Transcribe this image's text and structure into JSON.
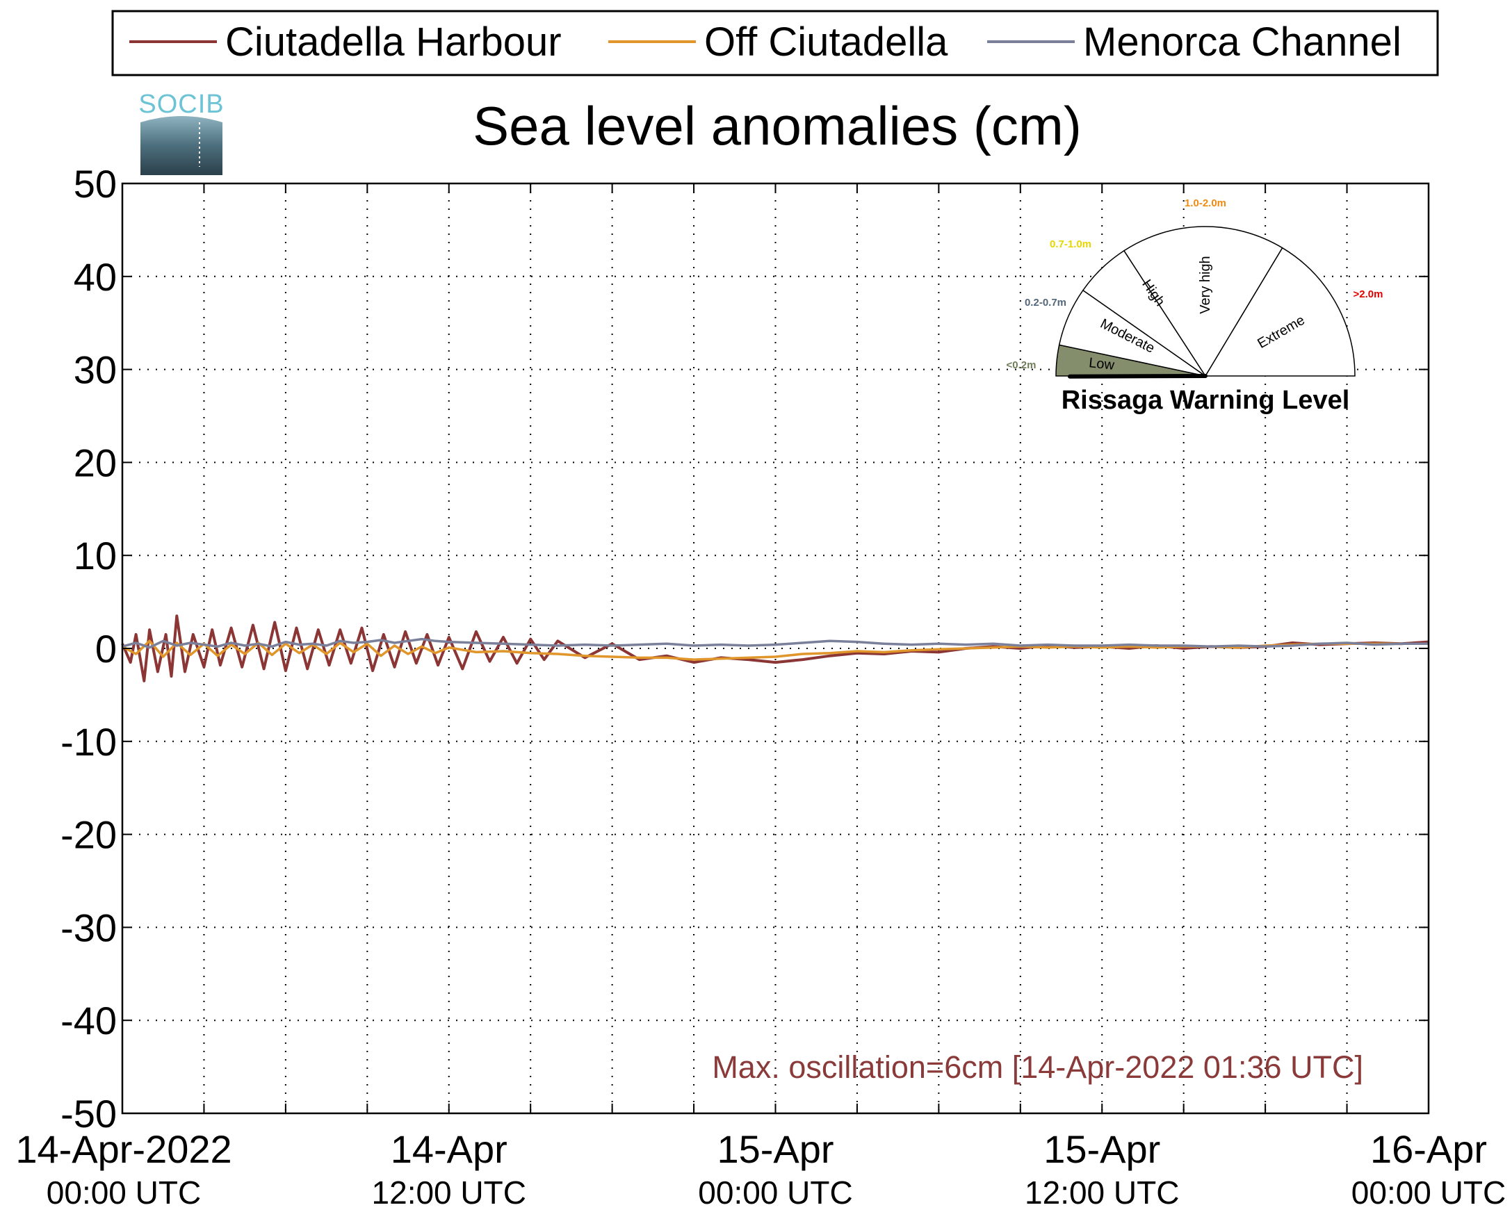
{
  "logo": {
    "text": "SOCIB"
  },
  "legend": {
    "placement": "top"
  },
  "chart_data": {
    "type": "line",
    "title": "Sea level anomalies (cm)",
    "xlabel": "",
    "ylabel": "",
    "ylim": [
      -50,
      50
    ],
    "yticks": [
      50,
      40,
      30,
      20,
      10,
      0,
      -10,
      -20,
      -30,
      -40,
      -50
    ],
    "ytick_labels": [
      "50",
      "40",
      "30",
      "20",
      "10",
      "0",
      "-10",
      "-20",
      "-30",
      "-40",
      "-50"
    ],
    "xlim_hours": [
      0,
      48
    ],
    "x_unit": "hours since 14-Apr-2022 00:00 UTC",
    "xticks": [
      {
        "hour": 0,
        "line1": "14-Apr-2022",
        "line2": "00:00 UTC"
      },
      {
        "hour": 12,
        "line1": "14-Apr",
        "line2": "12:00 UTC"
      },
      {
        "hour": 24,
        "line1": "15-Apr",
        "line2": "00:00 UTC"
      },
      {
        "hour": 36,
        "line1": "15-Apr",
        "line2": "12:00 UTC"
      },
      {
        "hour": 48,
        "line1": "16-Apr",
        "line2": "00:00 UTC"
      }
    ],
    "grid": true,
    "grid_hours": [
      3,
      6,
      9,
      12,
      15,
      18,
      21,
      24,
      27,
      30,
      33,
      36,
      39,
      42,
      45
    ],
    "annotation": "Max. oscillation=6cm [14-Apr-2022 01:36 UTC]",
    "annotation_color": "#8b3a3a",
    "series": [
      {
        "name": "Ciutadella Harbour",
        "color": "#8b3535",
        "x_hours": [
          0,
          0.3,
          0.5,
          0.8,
          1,
          1.3,
          1.6,
          1.8,
          2,
          2.3,
          2.6,
          3,
          3.3,
          3.6,
          4,
          4.4,
          4.8,
          5.2,
          5.6,
          6,
          6.4,
          6.8,
          7.2,
          7.6,
          8,
          8.4,
          8.8,
          9.2,
          9.6,
          10,
          10.4,
          10.8,
          11.2,
          11.6,
          12,
          12.5,
          13,
          13.5,
          14,
          14.5,
          15,
          15.5,
          16,
          17,
          18,
          19,
          20,
          21,
          22,
          23,
          24,
          25,
          26,
          27,
          28,
          29,
          30,
          31,
          32,
          33,
          34,
          35,
          36,
          37,
          38,
          39,
          40,
          41,
          42,
          43,
          44,
          45,
          46,
          47,
          48
        ],
        "values": [
          0.5,
          -1.5,
          1.5,
          -3.5,
          2,
          -2.5,
          1.5,
          -3,
          3.5,
          -2.5,
          1.5,
          -2,
          2,
          -1.8,
          2.2,
          -2,
          2.5,
          -2.2,
          2.8,
          -2.4,
          2.2,
          -2.2,
          2,
          -1.8,
          2,
          -1.6,
          2.2,
          -2.4,
          1.5,
          -2,
          1.8,
          -1.6,
          1.5,
          -1.8,
          1.2,
          -2.2,
          1.8,
          -1.4,
          1.2,
          -1.6,
          1,
          -1.2,
          0.8,
          -1,
          0.5,
          -1.2,
          -0.8,
          -1.5,
          -1,
          -1.2,
          -1.5,
          -1.2,
          -0.8,
          -0.5,
          -0.6,
          -0.3,
          -0.4,
          0,
          0.2,
          0,
          0.3,
          0.1,
          0.2,
          0,
          0.3,
          0,
          0.2,
          0.1,
          0.2,
          0.6,
          0.4,
          0.5,
          0.6,
          0.5,
          0.7
        ]
      },
      {
        "name": "Off Ciutadella",
        "color": "#e0962a",
        "x_hours": [
          0,
          0.5,
          1,
          1.5,
          2,
          2.5,
          3,
          3.5,
          4,
          4.5,
          5,
          5.5,
          6,
          6.5,
          7,
          7.5,
          8,
          8.5,
          9,
          9.5,
          10,
          10.5,
          11,
          11.5,
          12,
          13,
          14,
          15,
          16,
          17,
          18,
          19,
          20,
          21,
          22,
          23,
          24,
          25,
          26,
          27,
          28,
          29,
          30,
          31,
          32,
          33,
          34,
          35,
          36,
          37,
          38,
          39,
          40,
          41,
          42,
          43,
          44,
          45,
          46,
          47,
          48
        ],
        "values": [
          0.2,
          -0.6,
          0.8,
          -0.9,
          0.6,
          -0.7,
          0.5,
          -0.8,
          0.4,
          -0.6,
          0.6,
          -0.7,
          0.5,
          -0.5,
          0.4,
          -0.6,
          0.6,
          -0.4,
          0.5,
          -0.8,
          0.3,
          -0.6,
          0.2,
          -0.5,
          0.1,
          -0.4,
          -0.3,
          -0.5,
          -0.6,
          -0.8,
          -0.9,
          -1,
          -1,
          -1.2,
          -1.1,
          -1,
          -0.9,
          -0.6,
          -0.5,
          -0.3,
          -0.4,
          -0.2,
          -0.1,
          0,
          0.1,
          0.2,
          0.1,
          0.2,
          0.1,
          0.2,
          0.1,
          0.2,
          0.2,
          0.1,
          0.3,
          0.4,
          0.5,
          0.5,
          0.5,
          0.5,
          0.5
        ]
      },
      {
        "name": "Menorca Channel",
        "color": "#7a7f9a",
        "x_hours": [
          0,
          0.5,
          1,
          1.5,
          2,
          2.5,
          3,
          3.5,
          4,
          4.5,
          5,
          5.5,
          6,
          6.5,
          7,
          7.5,
          8,
          8.5,
          9,
          9.5,
          10,
          10.5,
          11,
          11.5,
          12,
          13,
          14,
          15,
          16,
          17,
          18,
          19,
          20,
          21,
          22,
          23,
          24,
          25,
          26,
          27,
          28,
          29,
          30,
          31,
          32,
          33,
          34,
          35,
          36,
          37,
          38,
          39,
          40,
          41,
          42,
          43,
          44,
          45,
          46,
          47,
          48
        ],
        "values": [
          0.2,
          0.6,
          0.1,
          0.8,
          0.3,
          0.6,
          0.4,
          0.2,
          0.6,
          0.3,
          0.5,
          0.2,
          0.7,
          0.4,
          0.5,
          0.3,
          0.8,
          0.6,
          0.7,
          0.9,
          0.6,
          0.8,
          1,
          0.8,
          0.7,
          0.6,
          0.5,
          0.4,
          0.3,
          0.4,
          0.3,
          0.4,
          0.5,
          0.3,
          0.4,
          0.3,
          0.4,
          0.6,
          0.8,
          0.7,
          0.5,
          0.4,
          0.5,
          0.4,
          0.5,
          0.3,
          0.4,
          0.3,
          0.3,
          0.4,
          0.3,
          0.3,
          0.2,
          0.3,
          0.2,
          0.3,
          0.5,
          0.6,
          0.4,
          0.5,
          0.5
        ]
      }
    ]
  },
  "gauge": {
    "title": "Rissaga Warning Level",
    "current_level": "Low",
    "needle_value_m": 0.05,
    "segments": [
      {
        "name": "Low",
        "range": "<0.2m",
        "range_color": "#6f7d5a",
        "fill": "#848d6c",
        "active": true
      },
      {
        "name": "Moderate",
        "range": "0.2-0.7m",
        "range_color": "#52677a",
        "fill": "#ffffff",
        "active": false
      },
      {
        "name": "High",
        "range": "0.7-1.0m",
        "range_color": "#e8d600",
        "fill": "#ffffff",
        "active": false
      },
      {
        "name": "Very high",
        "range": "1.0-2.0m",
        "range_color": "#f08a10",
        "fill": "#ffffff",
        "active": false
      },
      {
        "name": "Extreme",
        "range": ">2.0m",
        "range_color": "#e00000",
        "fill": "#ffffff",
        "active": false
      }
    ]
  }
}
